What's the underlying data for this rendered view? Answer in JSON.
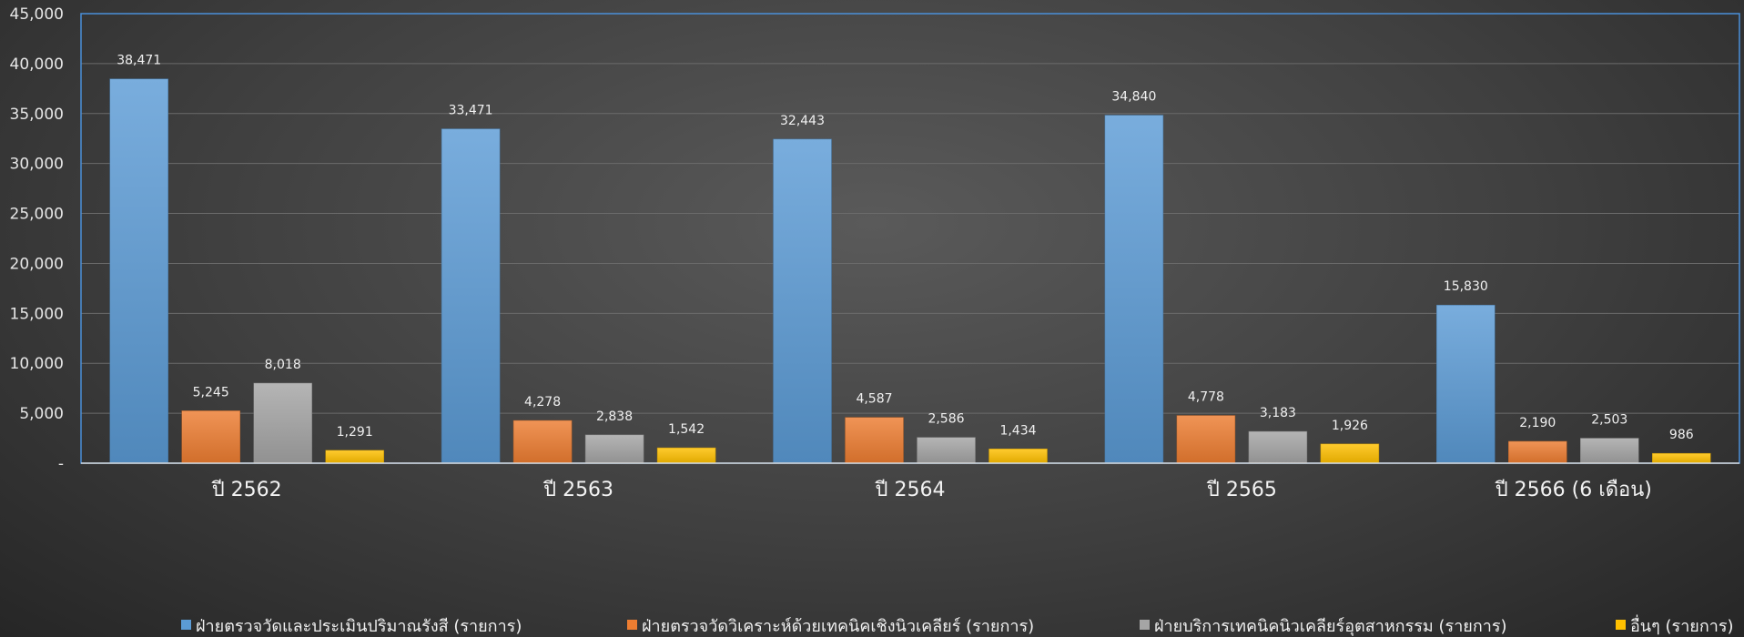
{
  "chart_data": {
    "type": "bar",
    "categories": [
      "ปี 2562",
      "ปี 2563",
      "ปี 2564",
      "ปี 2565",
      "ปี 2566 (6 เดือน)"
    ],
    "series": [
      {
        "name": "ฝ่ายตรวจวัดและประเมินปริมาณรังสี (รายการ)",
        "color": "#5b9bd5",
        "values": [
          38471,
          33471,
          32443,
          34840,
          15830
        ],
        "labels": [
          "38,471",
          "33,471",
          "32,443",
          "34,840",
          "15,830"
        ]
      },
      {
        "name": "ฝ่ายตรวจวัดวิเคราะห์ด้วยเทคนิคเชิงนิวเคลียร์ (รายการ)",
        "color": "#ed7d31",
        "values": [
          5245,
          4278,
          4587,
          4778,
          2190
        ],
        "labels": [
          "5,245",
          "4,278",
          "4,587",
          "4,778",
          "2,190"
        ]
      },
      {
        "name": "ฝ่ายบริการเทคนิคนิวเคลียร์อุตสาหกรรม (รายการ)",
        "color": "#a5a5a5",
        "values": [
          8018,
          2838,
          2586,
          3183,
          2503
        ],
        "labels": [
          "8,018",
          "2,838",
          "2,586",
          "3,183",
          "2,503"
        ]
      },
      {
        "name": "อื่นๆ (รายการ)",
        "color": "#ffc000",
        "values": [
          1291,
          1542,
          1434,
          1926,
          986
        ],
        "labels": [
          "1,291",
          "1,542",
          "1,434",
          "1,926",
          "986"
        ]
      }
    ],
    "ylim": [
      0,
      45000
    ],
    "ytick_labels": [
      "-",
      "5,000",
      "10,000",
      "15,000",
      "20,000",
      "25,000",
      "30,000",
      "35,000",
      "40,000",
      "45,000"
    ],
    "grid": true,
    "legend_position": "bottom"
  }
}
